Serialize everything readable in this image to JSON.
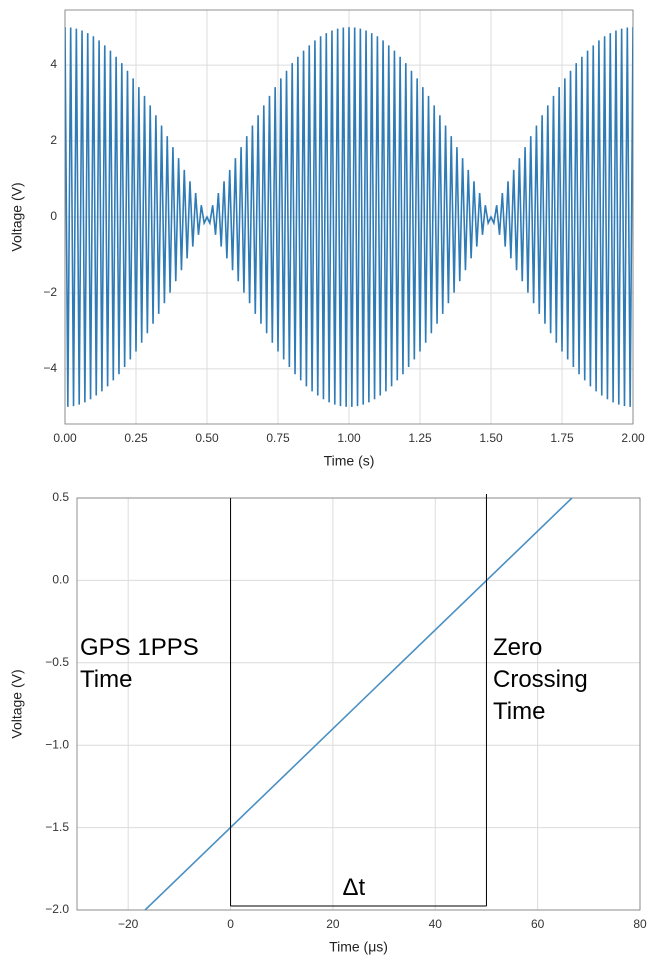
{
  "chart_data": [
    {
      "type": "line",
      "xlabel": "Time (s)",
      "ylabel": "Voltage (V)",
      "xlim": [
        0,
        2
      ],
      "ylim": [
        -5.45,
        5.45
      ],
      "xticks": [
        {
          "value": 0,
          "label": "0.00"
        },
        {
          "value": 0.25,
          "label": "0.25"
        },
        {
          "value": 0.5,
          "label": "0.50"
        },
        {
          "value": 0.75,
          "label": "0.75"
        },
        {
          "value": 1,
          "label": "1.00"
        },
        {
          "value": 1.25,
          "label": "1.25"
        },
        {
          "value": 1.5,
          "label": "1.50"
        },
        {
          "value": 1.75,
          "label": "1.75"
        },
        {
          "value": 2,
          "label": "2.00"
        }
      ],
      "yticks": [
        {
          "value": -4,
          "label": "−4"
        },
        {
          "value": -2,
          "label": "−2"
        },
        0,
        2,
        4
      ],
      "grid": true,
      "series": [
        {
          "color": "#2f7bb6",
          "x": [
            0,
            0.01,
            0.02,
            0.03,
            0.04,
            0.05,
            0.06,
            0.07,
            0.08,
            0.09,
            0.1,
            0.11,
            0.12,
            0.13,
            0.14,
            0.15,
            0.16,
            0.17,
            0.18,
            0.19,
            0.2,
            0.21,
            0.22,
            0.23,
            0.24,
            0.25,
            0.26,
            0.27,
            0.28,
            0.29,
            0.3,
            0.31,
            0.32,
            0.33,
            0.34,
            0.35,
            0.36,
            0.37,
            0.38,
            0.39,
            0.4,
            0.41,
            0.42,
            0.43,
            0.44,
            0.45,
            0.46,
            0.47,
            0.48,
            0.49,
            0.5,
            0.51,
            0.52,
            0.53,
            0.54,
            0.55,
            0.56,
            0.57,
            0.58,
            0.59,
            0.6,
            0.61,
            0.62,
            0.63,
            0.64,
            0.65,
            0.66,
            0.67,
            0.68,
            0.69,
            0.7,
            0.71,
            0.72,
            0.73,
            0.74,
            0.75,
            0.76,
            0.77,
            0.78,
            0.79,
            0.8,
            0.81,
            0.82,
            0.83,
            0.84,
            0.85,
            0.86,
            0.87,
            0.88,
            0.89,
            0.9,
            0.91,
            0.92,
            0.93,
            0.94,
            0.95,
            0.96,
            0.97,
            0.98,
            0.99,
            1,
            1.01,
            1.02,
            1.03,
            1.04,
            1.05,
            1.06,
            1.07,
            1.08,
            1.09,
            1.1,
            1.11,
            1.12,
            1.13,
            1.14,
            1.15,
            1.16,
            1.17,
            1.18,
            1.19,
            1.2,
            1.21,
            1.22,
            1.23,
            1.24,
            1.25,
            1.26,
            1.27,
            1.28,
            1.29,
            1.3,
            1.31,
            1.32,
            1.33,
            1.34,
            1.35,
            1.36,
            1.37,
            1.38,
            1.39,
            1.4,
            1.41,
            1.42,
            1.43,
            1.44,
            1.45,
            1.46,
            1.47,
            1.48,
            1.49,
            1.5,
            1.51,
            1.52,
            1.53,
            1.54,
            1.55,
            1.56,
            1.57,
            1.58,
            1.59,
            1.6,
            1.61,
            1.62,
            1.63,
            1.64,
            1.65,
            1.66,
            1.67,
            1.68,
            1.69,
            1.7,
            1.71,
            1.72,
            1.73,
            1.74,
            1.75,
            1.76,
            1.77,
            1.78,
            1.79,
            1.8,
            1.81,
            1.82,
            1.83,
            1.84,
            1.85,
            1.86,
            1.87,
            1.88,
            1.89,
            1.9,
            1.91,
            1.92,
            1.93,
            1.94,
            1.95,
            1.96,
            1.97,
            1.98,
            1.99,
            2
          ],
          "values": [
            5,
            -5,
            4.99,
            -4.98,
            4.96,
            -4.94,
            4.91,
            -4.88,
            4.84,
            -4.8,
            4.76,
            -4.7,
            4.65,
            -4.59,
            4.52,
            -4.46,
            4.38,
            -4.3,
            4.22,
            -4.14,
            4.05,
            -3.95,
            3.85,
            -3.75,
            3.65,
            -3.54,
            3.42,
            -3.31,
            3.19,
            -3.06,
            2.94,
            -2.81,
            2.68,
            -2.55,
            2.41,
            -2.27,
            2.13,
            -1.99,
            1.84,
            -1.69,
            1.55,
            -1.4,
            1.24,
            -1.09,
            0.94,
            -0.78,
            0.63,
            -0.47,
            0.31,
            -0.16,
            0,
            -0.16,
            0.31,
            -0.47,
            0.63,
            -0.78,
            0.94,
            -1.09,
            1.24,
            -1.4,
            1.55,
            -1.69,
            1.84,
            -1.99,
            2.13,
            -2.27,
            2.41,
            -2.55,
            2.68,
            -2.81,
            2.94,
            -3.06,
            3.19,
            -3.31,
            3.42,
            -3.54,
            3.65,
            -3.75,
            3.85,
            -3.95,
            4.05,
            -4.14,
            4.22,
            -4.3,
            4.38,
            -4.46,
            4.52,
            -4.59,
            4.65,
            -4.7,
            4.76,
            -4.8,
            4.84,
            -4.88,
            4.91,
            -4.94,
            4.96,
            -4.98,
            4.99,
            -5,
            5,
            -5,
            4.99,
            -4.98,
            4.96,
            -4.94,
            4.91,
            -4.88,
            4.84,
            -4.8,
            4.76,
            -4.7,
            4.65,
            -4.59,
            4.52,
            -4.46,
            4.38,
            -4.3,
            4.22,
            -4.14,
            4.05,
            -3.95,
            3.85,
            -3.75,
            3.65,
            -3.54,
            3.42,
            -3.31,
            3.19,
            -3.06,
            2.94,
            -2.81,
            2.68,
            -2.55,
            2.41,
            -2.27,
            2.13,
            -1.99,
            1.84,
            -1.69,
            1.55,
            -1.4,
            1.24,
            -1.09,
            0.94,
            -0.78,
            0.63,
            -0.47,
            0.31,
            -0.16,
            0,
            -0.16,
            0.31,
            -0.47,
            0.63,
            -0.78,
            0.94,
            -1.09,
            1.24,
            -1.4,
            1.55,
            -1.69,
            1.84,
            -1.99,
            2.13,
            -2.27,
            2.41,
            -2.55,
            2.68,
            -2.81,
            2.94,
            -3.06,
            3.19,
            -3.31,
            3.42,
            -3.54,
            3.65,
            -3.75,
            3.85,
            -3.95,
            4.05,
            -4.14,
            4.22,
            -4.3,
            4.38,
            -4.46,
            4.52,
            -4.59,
            4.65,
            -4.7,
            4.76,
            -4.8,
            4.84,
            -4.88,
            4.91,
            -4.94,
            4.96,
            -4.98,
            4.99,
            -5,
            5
          ]
        }
      ]
    },
    {
      "type": "line",
      "xlabel": "Time (μs)",
      "ylabel": "Voltage (V)",
      "xlim": [
        -30,
        80
      ],
      "ylim": [
        -2,
        0.5
      ],
      "xticks": [
        {
          "value": -20,
          "label": "−20"
        },
        0,
        20,
        40,
        60,
        80
      ],
      "yticks": [
        {
          "value": -2,
          "label": "−2.0"
        },
        {
          "value": -1.5,
          "label": "−1.5"
        },
        {
          "value": -1,
          "label": "−1.0"
        },
        {
          "value": -0.5,
          "label": "−0.5"
        },
        {
          "value": 0,
          "label": "0.0"
        },
        0.5
      ],
      "grid": true,
      "series": [
        {
          "color": "#4a90c2",
          "x": [
            -16.7,
            66.7
          ],
          "values": [
            -2,
            0.5
          ]
        }
      ],
      "vlines": [
        0,
        50
      ],
      "annotations": [
        {
          "lines": [
            "GPS 1PPS",
            "Time"
          ]
        },
        {
          "lines": [
            "Zero",
            "Crossing",
            "Time"
          ]
        },
        {
          "lines": [
            "Δt"
          ]
        }
      ]
    }
  ]
}
